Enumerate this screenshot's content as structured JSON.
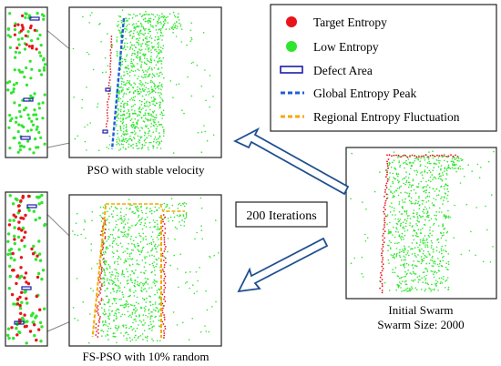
{
  "legend": {
    "items": [
      {
        "label": "Target Entropy",
        "marker": "dot",
        "color": "#e8141a"
      },
      {
        "label": "Low Entropy",
        "marker": "dot",
        "color": "#2ee62e"
      },
      {
        "label": "Defect Area",
        "marker": "rect",
        "color": "#1c1ca8"
      },
      {
        "label": "Global Entropy Peak",
        "marker": "dash",
        "color": "#1f5fd6"
      },
      {
        "label": "Regional Entropy Fluctuation",
        "marker": "dash",
        "color": "#f5a800"
      }
    ]
  },
  "iterations_label": "200 Iterations",
  "panels": {
    "pso": {
      "caption": "PSO with stable velocity"
    },
    "fspso": {
      "caption": "FS-PSO with 10% random"
    },
    "initial": {
      "caption_line1": "Initial Swarm",
      "caption_line2": "Swarm Size: 2000"
    }
  },
  "colors": {
    "target": "#e8141a",
    "low": "#2ee62e",
    "defect": "#1c1ca8",
    "global_peak": "#1f5fd6",
    "regional": "#f5a800",
    "arrow": "#1f4f8f"
  }
}
